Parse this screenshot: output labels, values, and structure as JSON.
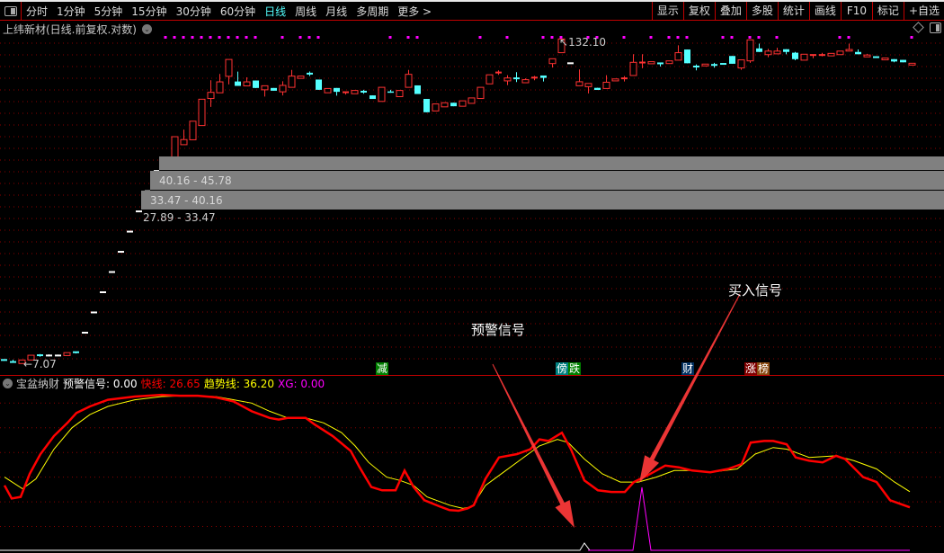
{
  "toolbar": {
    "periods": [
      "分时",
      "1分钟",
      "5分钟",
      "15分钟",
      "30分钟",
      "60分钟",
      "日线",
      "周线",
      "月线",
      "多周期",
      "更多 >"
    ],
    "active_period": "日线",
    "actions": [
      "显示",
      "复权",
      "叠加",
      "多股",
      "统计",
      "画线",
      "F10",
      "标记",
      "+自选"
    ]
  },
  "chart_title": "上纬新材(日线.前复权.对数)",
  "price_chart": {
    "scale": "log",
    "high_label": "132.10",
    "low_label": "7.07",
    "zones": [
      {
        "label": ""
      },
      {
        "label": "40.16 - 45.78"
      },
      {
        "label": "33.47 - 40.16"
      },
      {
        "label": "27.89 - 33.47"
      }
    ],
    "colors": {
      "up": "#ff3232",
      "down": "#54ffff",
      "flat": "#ffffff",
      "signal_dot": "#ff00ff",
      "grid": "#8b0000"
    },
    "signal_dot_bars": [
      18,
      19,
      20,
      21,
      22,
      23,
      24,
      25,
      26,
      27,
      28,
      31,
      33,
      34,
      35,
      43,
      45,
      46,
      53,
      56,
      60,
      61,
      62,
      65,
      66,
      69,
      72,
      74,
      75,
      76,
      80,
      81,
      83,
      84,
      86,
      93,
      94,
      101
    ],
    "candles_ochl_note": "",
    "candles": [
      [
        7.3,
        7.27,
        7.32,
        7.25
      ],
      [
        7.17,
        7.16,
        7.32,
        7.16
      ],
      [
        7.07,
        7.3,
        7.3,
        7.07
      ],
      [
        7.3,
        7.62,
        7.62,
        7.3
      ],
      [
        7.62,
        7.6,
        7.7,
        7.52
      ],
      [
        7.6,
        7.6,
        7.68,
        7.55
      ],
      [
        7.6,
        7.6,
        7.66,
        7.6
      ],
      [
        7.6,
        7.8,
        7.8,
        7.6
      ],
      [
        7.83,
        7.82,
        7.83,
        7.74
      ],
      [
        9.34,
        9.34,
        9.34,
        9.34
      ],
      [
        11.21,
        11.21,
        11.21,
        11.21
      ],
      [
        13.45,
        13.45,
        13.45,
        13.45
      ],
      [
        16.14,
        16.14,
        16.14,
        16.14
      ],
      [
        19.37,
        19.37,
        19.37,
        19.37
      ],
      [
        23.24,
        23.24,
        23.24,
        23.24
      ],
      [
        27.89,
        27.89,
        27.89,
        27.89
      ],
      [
        33.47,
        33.47,
        33.47,
        33.47
      ],
      [
        40.16,
        40.16,
        40.16,
        40.16
      ],
      [
        44.5,
        44.7,
        44.7,
        43.2
      ],
      [
        44.7,
        54.7,
        54.7,
        44.7
      ],
      [
        50.9,
        53.3,
        58.3,
        50.9
      ],
      [
        53.2,
        62.9,
        62.9,
        53.2
      ],
      [
        60.5,
        76.7,
        76.7,
        60.5
      ],
      [
        77.2,
        81.6,
        91.0,
        71.6
      ],
      [
        81.3,
        89.7,
        96.3,
        81.3
      ],
      [
        94.3,
        109.8,
        109.8,
        87.7
      ],
      [
        90.0,
        86.5,
        98.4,
        86.5
      ],
      [
        86.5,
        89.7,
        93.4,
        86.5
      ],
      [
        90.8,
        84.9,
        90.8,
        84.9
      ],
      [
        83.5,
        86.6,
        86.6,
        78.6
      ],
      [
        84.9,
        82.8,
        84.9,
        82.8
      ],
      [
        82.0,
        86.9,
        90.2,
        79.4
      ],
      [
        85.4,
        94.5,
        99.9,
        85.4
      ],
      [
        92.6,
        94.5,
        94.5,
        92.6
      ],
      [
        96.6,
        96.4,
        98.5,
        94.5
      ],
      [
        91.6,
        83.5,
        91.6,
        83.5
      ],
      [
        81.3,
        84.5,
        84.5,
        81.3
      ],
      [
        84.9,
        82.0,
        84.9,
        79.2
      ],
      [
        81.5,
        81.7,
        81.7,
        80.0
      ],
      [
        80.6,
        83.0,
        83.0,
        80.6
      ],
      [
        82.1,
        81.9,
        83.5,
        80.6
      ],
      [
        79.4,
        76.9,
        79.4,
        76.9
      ],
      [
        75.2,
        85.4,
        85.4,
        75.2
      ],
      [
        82.3,
        81.3,
        83.5,
        81.3
      ],
      [
        78.5,
        83.0,
        83.0,
        78.5
      ],
      [
        85.4,
        96.0,
        99.9,
        85.4
      ],
      [
        86.9,
        80.4,
        86.9,
        80.4
      ],
      [
        76.9,
        68.2,
        76.9,
        68.2
      ],
      [
        69.0,
        73.5,
        73.5,
        69.0
      ],
      [
        71.6,
        74.3,
        74.3,
        71.6
      ],
      [
        74.3,
        72.0,
        74.3,
        72.0
      ],
      [
        72.0,
        75.6,
        75.6,
        72.0
      ],
      [
        73.9,
        77.6,
        77.6,
        73.9
      ],
      [
        77.2,
        85.4,
        85.4,
        77.2
      ],
      [
        88.1,
        95.6,
        95.6,
        88.1
      ],
      [
        97.4,
        97.6,
        99.5,
        95.6
      ],
      [
        90.5,
        92.9,
        95.3,
        87.1
      ],
      [
        92.6,
        92.3,
        97.9,
        89.6
      ],
      [
        89.0,
        91.5,
        92.5,
        89.0
      ],
      [
        92.3,
        93.2,
        94.7,
        91.0
      ],
      [
        95.0,
        93.0,
        95.0,
        90.0
      ],
      [
        105.8,
        110.5,
        110.5,
        102.1
      ],
      [
        116.7,
        132.1,
        132.1,
        116.7
      ],
      [
        106.1,
        106.1,
        106.1,
        106.1
      ],
      [
        86.6,
        89.8,
        100.3,
        86.6
      ],
      [
        85.9,
        88.4,
        88.4,
        80.8
      ],
      [
        85.0,
        83.4,
        85.0,
        83.4
      ],
      [
        84.5,
        89.4,
        95.3,
        84.5
      ],
      [
        90.5,
        92.1,
        92.1,
        90.5
      ],
      [
        92.3,
        92.6,
        94.5,
        90.0
      ],
      [
        95.0,
        107.0,
        115.1,
        95.0
      ],
      [
        106.5,
        106.8,
        115.1,
        101.5
      ],
      [
        105.6,
        107.6,
        107.6,
        105.6
      ],
      [
        106.0,
        105.8,
        106.0,
        103.0
      ],
      [
        105.8,
        108.4,
        108.4,
        105.8
      ],
      [
        109.1,
        116.7,
        124.8,
        109.1
      ],
      [
        120.1,
        106.1,
        120.1,
        106.1
      ],
      [
        103.0,
        102.8,
        105.0,
        99.5
      ],
      [
        103.6,
        105.3,
        105.3,
        103.6
      ],
      [
        104.5,
        104.4,
        106.5,
        102.0
      ],
      [
        105.5,
        105.2,
        105.5,
        105.2
      ],
      [
        113.3,
        105.6,
        113.3,
        105.6
      ],
      [
        101.7,
        109.4,
        109.4,
        100.0
      ],
      [
        108.4,
        131.0,
        131.0,
        106.5
      ],
      [
        121.3,
        117.5,
        126.6,
        117.5
      ],
      [
        114.7,
        118.4,
        120.8,
        112.0
      ],
      [
        115.5,
        118.4,
        122.0,
        115.5
      ],
      [
        120.4,
        117.5,
        120.4,
        115.0
      ],
      [
        116.7,
        110.1,
        117.5,
        109.0
      ],
      [
        109.1,
        115.1,
        115.1,
        109.1
      ],
      [
        114.0,
        114.3,
        114.3,
        111.0
      ],
      [
        113.0,
        114.3,
        116.5,
        113.0
      ],
      [
        113.4,
        116.0,
        116.0,
        113.4
      ],
      [
        114.7,
        118.4,
        118.4,
        114.7
      ],
      [
        118.4,
        120.1,
        126.6,
        118.4
      ],
      [
        117.5,
        115.1,
        120.1,
        115.1
      ],
      [
        112.4,
        114.3,
        115.5,
        112.4
      ],
      [
        113.0,
        111.2,
        113.0,
        111.2
      ],
      [
        109.4,
        111.2,
        111.2,
        109.4
      ],
      [
        110.1,
        107.8,
        110.1,
        107.0
      ],
      [
        109.4,
        107.0,
        109.4,
        107.0
      ],
      [
        104.4,
        106.1,
        106.1,
        104.4
      ]
    ],
    "event_tags": [
      {
        "bar": 42,
        "parts": [
          {
            "text": "减",
            "bg": "#008000"
          }
        ]
      },
      {
        "bar": 62,
        "parts": [
          {
            "text": "傍",
            "bg": "#008080"
          },
          {
            "text": "跌",
            "bg": "#008000"
          }
        ]
      },
      {
        "bar": 76,
        "parts": [
          {
            "text": "财",
            "bg": "#003060"
          }
        ]
      },
      {
        "bar": 83,
        "parts": [
          {
            "text": "涨",
            "bg": "#800000"
          },
          {
            "text": "榜",
            "bg": "#8a4a10"
          }
        ]
      }
    ]
  },
  "indicator": {
    "name": "宝盆纳财",
    "warn_label": "预警信号: 0.00",
    "fast_label": "快线: 26.65",
    "trend_label": "趋势线: 36.20",
    "xg_label": "XG: 0.00",
    "colors": {
      "warn": "#ffffff",
      "fast": "#ff0000",
      "trend": "#ffff00",
      "xg": "#ff00ff"
    },
    "grid_values": [
      15,
      30,
      45,
      60,
      75,
      90
    ],
    "fast": [
      [
        0.1,
        40
      ],
      [
        0.9,
        32
      ],
      [
        1.9,
        33
      ],
      [
        2.9,
        47
      ],
      [
        4.1,
        59
      ],
      [
        5.6,
        70
      ],
      [
        7.1,
        78
      ],
      [
        8.1,
        84
      ],
      [
        9.6,
        88
      ],
      [
        11.6,
        92
      ],
      [
        14.6,
        94
      ],
      [
        17.6,
        95
      ],
      [
        19.6,
        94.5
      ],
      [
        21.6,
        94.5
      ],
      [
        23.6,
        93.5
      ],
      [
        25.6,
        91
      ],
      [
        27.6,
        85
      ],
      [
        29.6,
        81
      ],
      [
        30.6,
        80
      ],
      [
        31.6,
        81
      ],
      [
        33.6,
        81
      ],
      [
        34.6,
        77
      ],
      [
        36.6,
        70
      ],
      [
        38.6,
        61
      ],
      [
        39.6,
        51
      ],
      [
        40.9,
        39
      ],
      [
        42.1,
        37
      ],
      [
        43.6,
        37
      ],
      [
        44.6,
        49
      ],
      [
        45.6,
        39
      ],
      [
        46.8,
        31
      ],
      [
        48.6,
        27
      ],
      [
        49.6,
        25
      ],
      [
        50.6,
        24.6
      ],
      [
        51.6,
        26
      ],
      [
        52.3,
        28
      ],
      [
        53.6,
        44
      ],
      [
        55.1,
        57
      ],
      [
        57.1,
        59
      ],
      [
        58.6,
        62
      ],
      [
        59.6,
        68
      ],
      [
        60.6,
        67
      ],
      [
        62.1,
        72
      ],
      [
        63.1,
        62
      ],
      [
        64.6,
        43
      ],
      [
        66.1,
        37
      ],
      [
        67.6,
        36
      ],
      [
        69.1,
        36
      ],
      [
        70.1,
        42
      ],
      [
        71.6,
        46
      ],
      [
        73.6,
        52
      ],
      [
        75.1,
        51
      ],
      [
        76.6,
        49
      ],
      [
        78.6,
        48
      ],
      [
        80.6,
        50
      ],
      [
        82.1,
        53
      ],
      [
        83.1,
        66
      ],
      [
        84.6,
        67
      ],
      [
        85.6,
        67
      ],
      [
        87.1,
        65
      ],
      [
        88.1,
        57
      ],
      [
        89.6,
        55
      ],
      [
        91.1,
        54
      ],
      [
        92.6,
        58
      ],
      [
        93.6,
        56
      ],
      [
        95.6,
        45
      ],
      [
        97.1,
        42
      ],
      [
        98.6,
        31
      ],
      [
        100.8,
        26.65
      ]
    ],
    "trend": [
      [
        0.1,
        45
      ],
      [
        2.1,
        38
      ],
      [
        3.6,
        44
      ],
      [
        5.6,
        62
      ],
      [
        7.6,
        75
      ],
      [
        9.6,
        83
      ],
      [
        11.6,
        88
      ],
      [
        14.6,
        92
      ],
      [
        17.6,
        94
      ],
      [
        20.6,
        94.5
      ],
      [
        23.6,
        94
      ],
      [
        25.6,
        92
      ],
      [
        27.6,
        90
      ],
      [
        29.6,
        85
      ],
      [
        31.6,
        81
      ],
      [
        33.6,
        81
      ],
      [
        35.6,
        78
      ],
      [
        37.6,
        72
      ],
      [
        39.1,
        64
      ],
      [
        40.6,
        54
      ],
      [
        42.6,
        45
      ],
      [
        44.1,
        43
      ],
      [
        45.6,
        40
      ],
      [
        47.1,
        33
      ],
      [
        49.6,
        28
      ],
      [
        51.1,
        26
      ],
      [
        52.1,
        27
      ],
      [
        53.6,
        40
      ],
      [
        55.6,
        48
      ],
      [
        57.6,
        56
      ],
      [
        59.6,
        64
      ],
      [
        61.6,
        68
      ],
      [
        62.8,
        66
      ],
      [
        64.6,
        56
      ],
      [
        66.6,
        47
      ],
      [
        68.6,
        42
      ],
      [
        70.6,
        42
      ],
      [
        72.6,
        45
      ],
      [
        74.6,
        49
      ],
      [
        76.6,
        49
      ],
      [
        78.6,
        48
      ],
      [
        81.6,
        50
      ],
      [
        83.6,
        59
      ],
      [
        85.6,
        63
      ],
      [
        87.1,
        62
      ],
      [
        89.6,
        57
      ],
      [
        92.6,
        58
      ],
      [
        94.6,
        55
      ],
      [
        97.1,
        50
      ],
      [
        99.1,
        42
      ],
      [
        100.8,
        36.2
      ]
    ],
    "warn_signal_bars": [
      64.6
    ],
    "xg_signal_bars": [
      71
    ]
  },
  "annotations": {
    "warning": "预警信号",
    "buy": "买入信号",
    "arrow_color": "#ff3a3a"
  }
}
